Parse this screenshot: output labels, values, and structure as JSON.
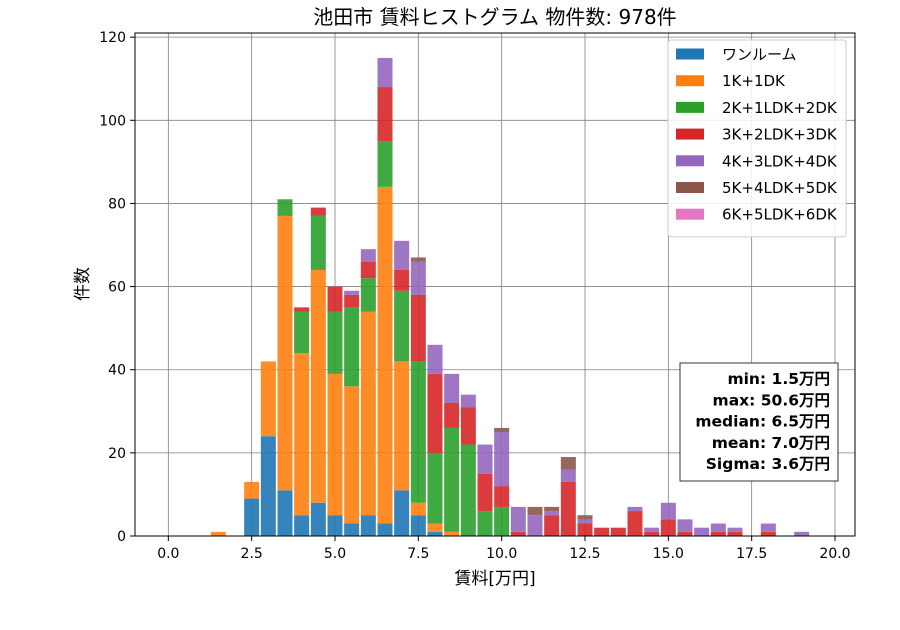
{
  "chart_data": {
    "type": "bar",
    "title": "池田市 賃料ヒストグラム  物件数: 978件",
    "xlabel": "賃料[万円]",
    "ylabel": "件数",
    "xlim": [
      -1.0,
      20.6
    ],
    "ylim": [
      0,
      121
    ],
    "xticks": [
      0.0,
      2.5,
      5.0,
      7.5,
      10.0,
      12.5,
      15.0,
      17.5,
      20.0
    ],
    "xtick_labels": [
      "0.0",
      "2.5",
      "5.0",
      "7.5",
      "10.0",
      "12.5",
      "15.0",
      "17.5",
      "20.0"
    ],
    "yticks": [
      0,
      20,
      40,
      60,
      80,
      100,
      120
    ],
    "ytick_labels": [
      "0",
      "20",
      "40",
      "60",
      "80",
      "100",
      "120"
    ],
    "grid": true,
    "legend_position": "top-right",
    "bin_width": 0.5,
    "x": [
      1.5,
      2.5,
      3.0,
      3.5,
      4.0,
      4.5,
      5.0,
      5.5,
      6.0,
      6.5,
      7.0,
      7.5,
      8.0,
      8.5,
      9.0,
      9.5,
      10.0,
      10.5,
      11.0,
      11.5,
      12.0,
      12.5,
      13.0,
      13.5,
      14.0,
      14.5,
      15.0,
      15.5,
      16.0,
      16.5,
      17.0,
      18.0,
      19.0
    ],
    "series": [
      {
        "name": "ワンルーム",
        "color": "#1f77b4",
        "values": [
          0,
          9,
          24,
          11,
          5,
          8,
          5,
          3,
          5,
          3,
          11,
          5,
          1,
          0,
          0,
          0,
          0,
          0,
          0,
          0,
          0,
          0,
          0,
          0,
          0,
          0,
          0,
          0,
          0,
          0,
          0,
          0,
          0
        ]
      },
      {
        "name": "1K+1DK",
        "color": "#ff7f0e",
        "values": [
          1,
          4,
          18,
          66,
          39,
          56,
          34,
          33,
          49,
          81,
          31,
          3,
          2,
          1,
          0,
          0,
          0,
          0,
          0,
          0,
          0,
          0,
          0,
          0,
          0,
          0,
          0,
          0,
          0,
          0,
          0,
          0,
          0
        ]
      },
      {
        "name": "2K+1LDK+2DK",
        "color": "#2ca02c",
        "values": [
          0,
          0,
          0,
          4,
          10,
          13,
          15,
          19,
          8,
          11,
          17,
          34,
          17,
          25,
          22,
          6,
          7,
          0,
          0,
          0,
          0,
          0,
          0,
          0,
          0,
          0,
          0,
          0,
          0,
          0,
          0,
          0,
          0
        ]
      },
      {
        "name": "3K+2LDK+3DK",
        "color": "#d62728",
        "values": [
          0,
          0,
          0,
          0,
          1,
          2,
          6,
          3,
          4,
          13,
          5,
          16,
          19,
          6,
          9,
          9,
          5,
          1,
          0,
          5,
          13,
          3,
          2,
          2,
          6,
          1,
          4,
          1,
          0,
          1,
          1,
          1,
          0
        ]
      },
      {
        "name": "4K+3LDK+4DK",
        "color": "#9467bd",
        "values": [
          0,
          0,
          0,
          0,
          0,
          0,
          0,
          1,
          3,
          7,
          7,
          8,
          7,
          7,
          3,
          7,
          13,
          6,
          5,
          1,
          3,
          1,
          0,
          0,
          1,
          1,
          4,
          3,
          2,
          2,
          1,
          2,
          1
        ]
      },
      {
        "name": "5K+4LDK+5DK",
        "color": "#8c564b",
        "values": [
          0,
          0,
          0,
          0,
          0,
          0,
          0,
          0,
          0,
          0,
          0,
          1,
          0,
          0,
          0,
          0,
          1,
          0,
          2,
          1,
          3,
          1,
          0,
          0,
          0,
          0,
          0,
          0,
          0,
          0,
          0,
          0,
          0
        ]
      },
      {
        "name": "6K+5LDK+6DK",
        "color": "#e377c2",
        "values": [
          0,
          0,
          0,
          0,
          0,
          0,
          0,
          0,
          0,
          0,
          0,
          0,
          0,
          0,
          0,
          0,
          0,
          0,
          0,
          0,
          0,
          0,
          0,
          0,
          0,
          0,
          0,
          0,
          0,
          0,
          0,
          0,
          0
        ]
      }
    ],
    "stats": [
      "min: 1.5万円",
      "max: 50.6万円",
      "median: 6.5万円",
      "mean: 7.0万円",
      "Sigma: 3.6万円"
    ]
  }
}
